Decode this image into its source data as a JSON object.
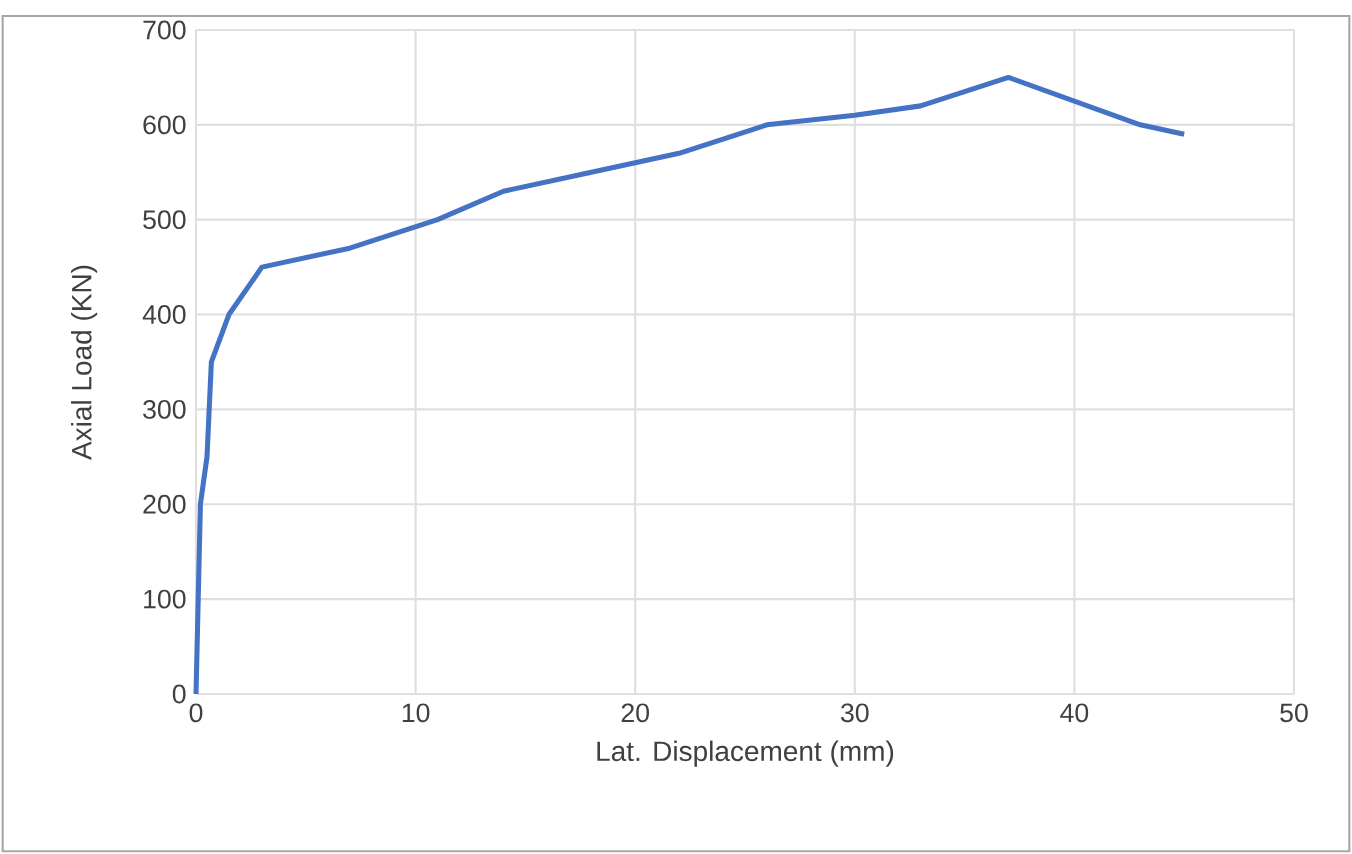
{
  "chart_data": {
    "type": "line",
    "xlabel": "Lat. Displacement (mm)",
    "ylabel": "Axial Load (KN)",
    "x": [
      0,
      0.1,
      0.2,
      0.5,
      0.7,
      1.5,
      3,
      7,
      11,
      14,
      18,
      22,
      26,
      30,
      33,
      37,
      40,
      43,
      45
    ],
    "series": [
      {
        "color": "#4472c4",
        "values": [
          0,
          100,
          200,
          250,
          350,
          400,
          450,
          470,
          500,
          530,
          550,
          570,
          600,
          610,
          620,
          650,
          625,
          600,
          590
        ]
      }
    ],
    "xlim": [
      0,
      50
    ],
    "ylim": [
      0,
      700
    ],
    "xticks": [
      0,
      10,
      20,
      30,
      40,
      50
    ],
    "yticks": [
      0,
      100,
      200,
      300,
      400,
      500,
      600,
      700
    ],
    "grid": true,
    "marker": "none",
    "line_style": "solid"
  }
}
